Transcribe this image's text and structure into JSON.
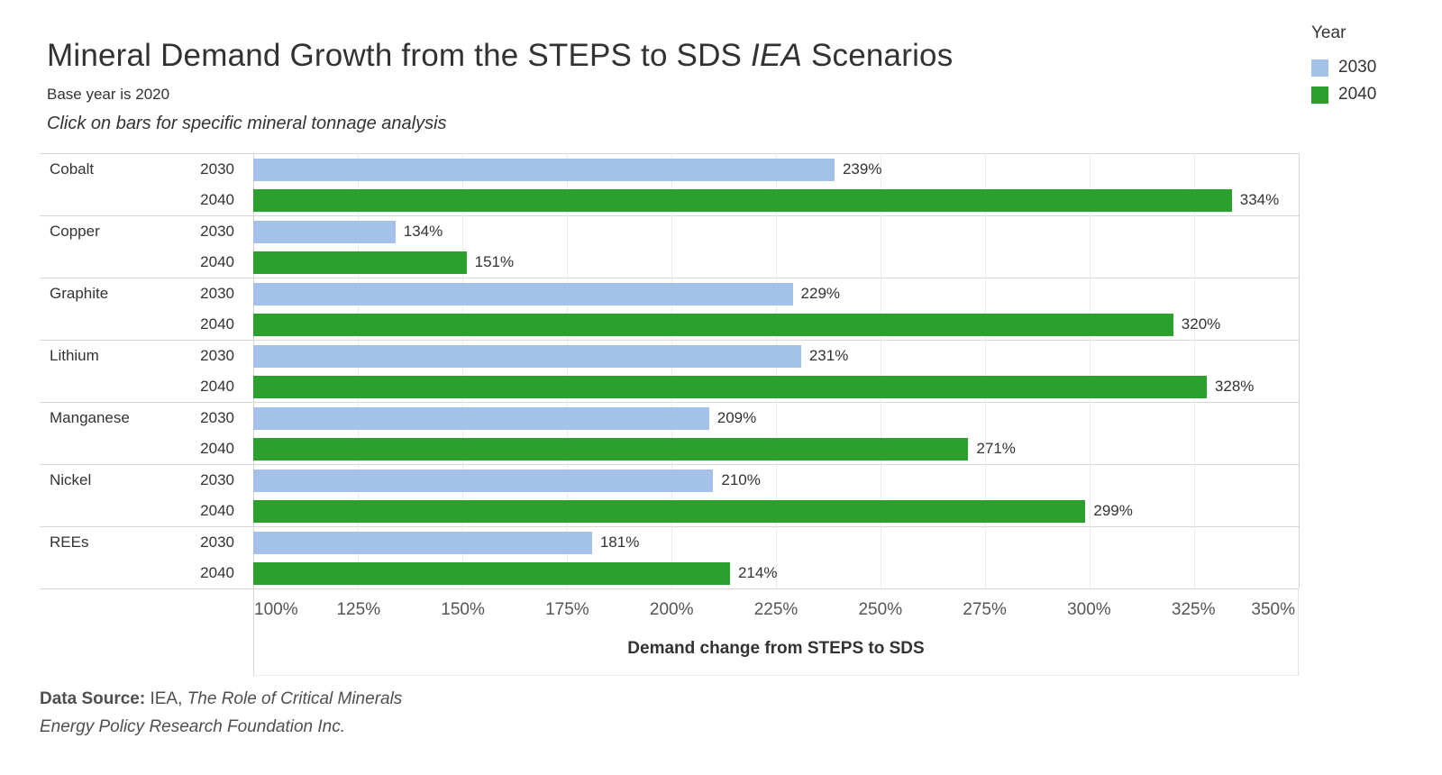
{
  "header": {
    "title_prefix": "Mineral Demand Growth from the STEPS to SDS ",
    "title_italic": "IEA",
    "title_suffix": " Scenarios",
    "subtitle": "Base year is 2020",
    "instruction": "Click on bars for specific mineral tonnage analysis"
  },
  "legend": {
    "title": "Year",
    "items": [
      {
        "label": "2030",
        "color": "#a4c2e9"
      },
      {
        "label": "2040",
        "color": "#2ca02c"
      }
    ]
  },
  "chart_data": {
    "type": "bar",
    "orientation": "horizontal",
    "title": "Mineral Demand Growth from the STEPS to SDS IEA Scenarios",
    "categories": [
      "Cobalt",
      "Copper",
      "Graphite",
      "Lithium",
      "Manganese",
      "Nickel",
      "REEs"
    ],
    "series": [
      {
        "name": "2030",
        "color": "#a4c2e9",
        "values": [
          239,
          134,
          229,
          231,
          209,
          210,
          181
        ]
      },
      {
        "name": "2040",
        "color": "#2ca02c",
        "values": [
          334,
          151,
          320,
          328,
          271,
          299,
          214
        ]
      }
    ],
    "value_suffix": "%",
    "xlabel": "Demand change from STEPS to SDS",
    "xlim": [
      100,
      350
    ],
    "x_ticks": [
      "100%",
      "125%",
      "150%",
      "175%",
      "200%",
      "225%",
      "250%",
      "275%",
      "300%",
      "325%",
      "350%"
    ],
    "grid": "vertical gridlines on"
  },
  "footer": {
    "source_label": "Data Source:",
    "source_normal": " IEA, ",
    "source_italic": "The Role of Critical Minerals",
    "source_line2": "Energy Policy Research Foundation Inc."
  }
}
